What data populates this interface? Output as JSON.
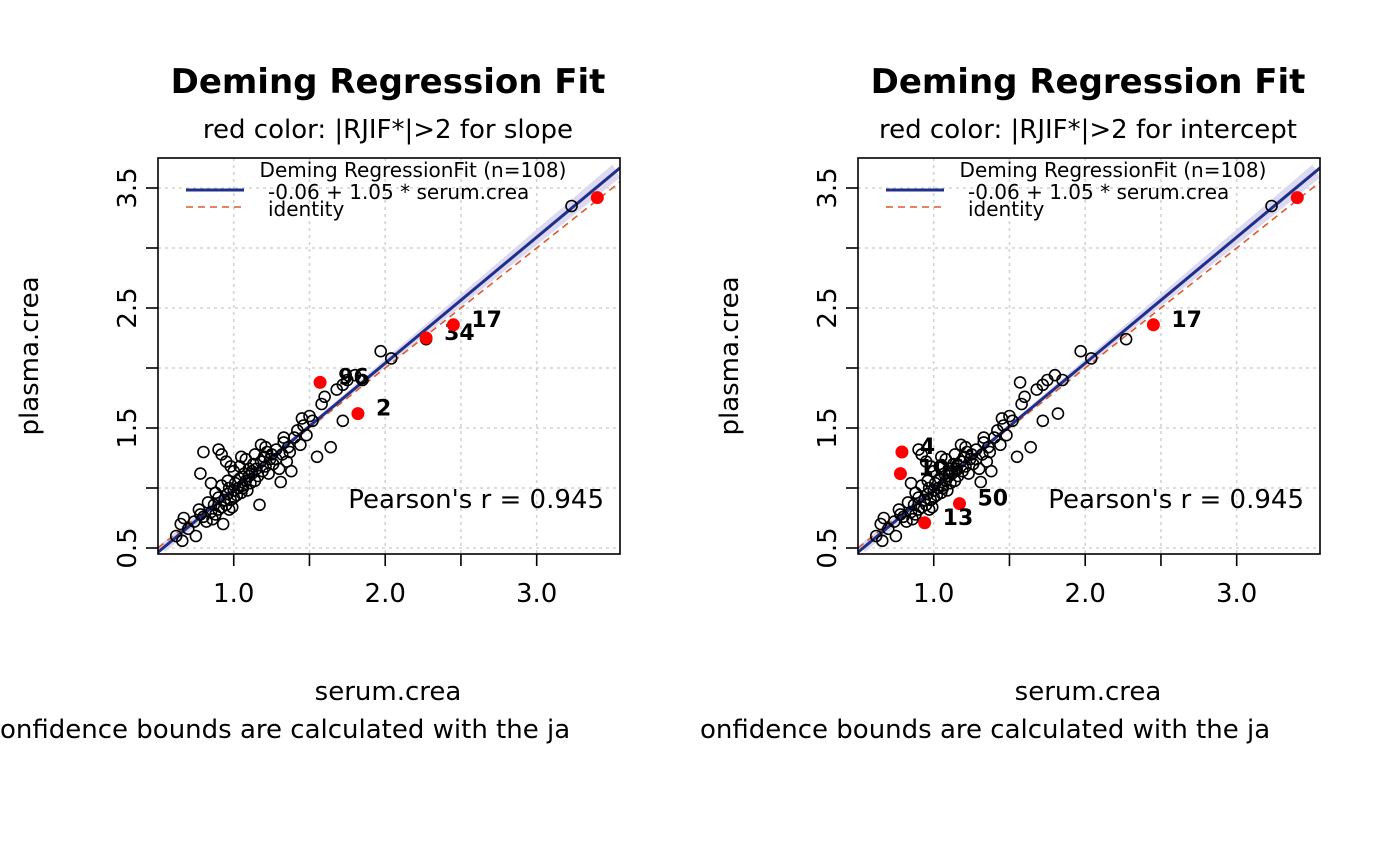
{
  "colors": {
    "fit_line": "#1f2f8a",
    "identity_line": "#e05a2a",
    "ci_band": "#dcd9f0",
    "highlight": "#ff0000",
    "point": "#000000",
    "grid": "#d3d3d3"
  },
  "chart_data": [
    {
      "type": "scatter",
      "title": "Deming Regression Fit",
      "subtitle": "red color: |RJIF*|>2 for slope",
      "xlabel": "serum.crea",
      "ylabel": "plasma.crea",
      "caption": "onfidence bounds are calculated with the ja",
      "xlim": [
        0.5,
        3.55
      ],
      "ylim": [
        0.45,
        3.75
      ],
      "xticks": [
        1.0,
        1.5,
        2.0,
        2.5,
        3.0
      ],
      "xtick_labels": [
        "1.0",
        "",
        "2.0",
        "",
        "3.0"
      ],
      "yticks": [
        0.5,
        1.0,
        1.5,
        2.0,
        2.5,
        3.0,
        3.5
      ],
      "ytick_labels": [
        "0.5",
        "",
        "1.5",
        "",
        "2.5",
        "",
        "3.5"
      ],
      "grid": true,
      "legend": {
        "position": "top",
        "title": "Deming RegressionFit (n=108)",
        "entries": [
          {
            "label": "-0.06 + 1.05 * serum.crea",
            "style": "solid"
          },
          {
            "label": "identity",
            "style": "dashed"
          }
        ]
      },
      "fit": {
        "intercept": -0.06,
        "slope": 1.05
      },
      "annotation": "Pearson's r = 0.945",
      "points": [
        [
          0.62,
          0.6
        ],
        [
          0.66,
          0.56
        ],
        [
          0.67,
          0.75
        ],
        [
          0.65,
          0.7
        ],
        [
          0.75,
          0.6
        ],
        [
          0.77,
          0.82
        ],
        [
          0.8,
          0.76
        ],
        [
          0.82,
          0.72
        ],
        [
          0.83,
          0.88
        ],
        [
          0.85,
          0.8
        ],
        [
          0.87,
          0.86
        ],
        [
          0.88,
          0.78
        ],
        [
          0.9,
          0.82
        ],
        [
          0.9,
          0.92
        ],
        [
          0.92,
          0.84
        ],
        [
          0.93,
          0.7
        ],
        [
          0.94,
          0.9
        ],
        [
          0.95,
          0.86
        ],
        [
          0.96,
          0.95
        ],
        [
          0.97,
          0.82
        ],
        [
          0.98,
          0.9
        ],
        [
          0.99,
          0.84
        ],
        [
          1.0,
          0.98
        ],
        [
          1.0,
          0.92
        ],
        [
          1.01,
          1.04
        ],
        [
          1.02,
          0.94
        ],
        [
          1.03,
          1.0
        ],
        [
          1.04,
          1.08
        ],
        [
          1.05,
          0.96
        ],
        [
          1.06,
          1.02
        ],
        [
          1.07,
          1.12
        ],
        [
          1.08,
          1.06
        ],
        [
          1.09,
          0.98
        ],
        [
          1.1,
          1.1
        ],
        [
          1.11,
          1.04
        ],
        [
          1.12,
          1.14
        ],
        [
          1.13,
          1.2
        ],
        [
          1.14,
          1.06
        ],
        [
          1.15,
          1.16
        ],
        [
          1.16,
          1.1
        ],
        [
          1.17,
          0.86
        ],
        [
          1.18,
          1.22
        ],
        [
          1.19,
          1.14
        ],
        [
          1.2,
          1.26
        ],
        [
          1.21,
          1.18
        ],
        [
          1.22,
          1.3
        ],
        [
          1.23,
          1.12
        ],
        [
          1.24,
          1.24
        ],
        [
          1.26,
          1.2
        ],
        [
          1.28,
          1.32
        ],
        [
          1.3,
          1.16
        ],
        [
          1.31,
          1.05
        ],
        [
          1.32,
          1.28
        ],
        [
          1.33,
          1.38
        ],
        [
          1.35,
          1.22
        ],
        [
          1.36,
          1.34
        ],
        [
          1.38,
          1.14
        ],
        [
          1.4,
          1.42
        ],
        [
          1.42,
          1.48
        ],
        [
          1.44,
          1.36
        ],
        [
          1.46,
          1.52
        ],
        [
          1.48,
          1.44
        ],
        [
          1.5,
          1.6
        ],
        [
          1.52,
          1.56
        ],
        [
          1.55,
          1.26
        ],
        [
          1.58,
          1.7
        ],
        [
          1.6,
          1.76
        ],
        [
          1.64,
          1.34
        ],
        [
          1.68,
          1.82
        ],
        [
          1.72,
          1.86
        ],
        [
          1.75,
          1.9
        ],
        [
          1.8,
          1.94
        ],
        [
          1.72,
          1.56
        ],
        [
          1.85,
          1.9
        ],
        [
          1.97,
          2.14
        ],
        [
          2.04,
          2.08
        ],
        [
          2.27,
          2.24
        ],
        [
          0.78,
          1.12
        ],
        [
          0.8,
          1.3
        ],
        [
          0.85,
          1.04
        ],
        [
          0.9,
          1.32
        ],
        [
          0.92,
          1.28
        ],
        [
          0.95,
          1.22
        ],
        [
          0.98,
          1.18
        ],
        [
          1.05,
          1.26
        ],
        [
          1.1,
          1.16
        ],
        [
          1.14,
          1.28
        ],
        [
          1.18,
          1.36
        ],
        [
          1.21,
          1.34
        ],
        [
          1.25,
          1.28
        ],
        [
          1.28,
          1.24
        ],
        [
          1.33,
          1.42
        ],
        [
          1.37,
          1.3
        ],
        [
          1.45,
          1.58
        ],
        [
          0.7,
          0.66
        ],
        [
          0.74,
          0.72
        ],
        [
          0.78,
          0.78
        ],
        [
          0.86,
          0.74
        ],
        [
          0.88,
          0.96
        ],
        [
          0.92,
          1.02
        ],
        [
          0.96,
          1.06
        ],
        [
          1.0,
          1.14
        ],
        [
          1.04,
          1.18
        ],
        [
          1.08,
          1.24
        ],
        [
          3.23,
          3.35
        ],
        [
          0.97,
          1.0
        ],
        [
          1.06,
          1.0
        ],
        [
          1.12,
          1.12
        ]
      ],
      "highlighted": [
        {
          "label": "96",
          "x": 1.57,
          "y": 1.88
        },
        {
          "label": "2",
          "x": 1.82,
          "y": 1.62
        },
        {
          "label": "34",
          "x": 2.27,
          "y": 2.25
        },
        {
          "label": "17",
          "x": 2.45,
          "y": 2.36
        },
        {
          "label": "",
          "x": 3.4,
          "y": 3.42
        }
      ]
    },
    {
      "type": "scatter",
      "title": "Deming Regression Fit",
      "subtitle": "red color: |RJIF*|>2 for intercept",
      "xlabel": "serum.crea",
      "ylabel": "plasma.crea",
      "caption": "onfidence bounds are calculated with the ja",
      "xlim": [
        0.5,
        3.55
      ],
      "ylim": [
        0.45,
        3.75
      ],
      "xticks": [
        1.0,
        1.5,
        2.0,
        2.5,
        3.0
      ],
      "xtick_labels": [
        "1.0",
        "",
        "2.0",
        "",
        "3.0"
      ],
      "yticks": [
        0.5,
        1.0,
        1.5,
        2.0,
        2.5,
        3.0,
        3.5
      ],
      "ytick_labels": [
        "0.5",
        "",
        "1.5",
        "",
        "2.5",
        "",
        "3.5"
      ],
      "grid": true,
      "legend": {
        "position": "top",
        "title": "Deming RegressionFit (n=108)",
        "entries": [
          {
            "label": "-0.06 + 1.05 * serum.crea",
            "style": "solid"
          },
          {
            "label": "identity",
            "style": "dashed"
          }
        ]
      },
      "fit": {
        "intercept": -0.06,
        "slope": 1.05
      },
      "annotation": "Pearson's r = 0.945",
      "points": [
        [
          0.62,
          0.6
        ],
        [
          0.66,
          0.56
        ],
        [
          0.67,
          0.75
        ],
        [
          0.65,
          0.7
        ],
        [
          0.75,
          0.6
        ],
        [
          0.77,
          0.82
        ],
        [
          0.8,
          0.76
        ],
        [
          0.82,
          0.72
        ],
        [
          0.83,
          0.88
        ],
        [
          0.85,
          0.8
        ],
        [
          0.87,
          0.86
        ],
        [
          0.88,
          0.78
        ],
        [
          0.9,
          0.82
        ],
        [
          0.9,
          0.92
        ],
        [
          0.92,
          0.84
        ],
        [
          0.94,
          0.9
        ],
        [
          0.95,
          0.86
        ],
        [
          0.96,
          0.95
        ],
        [
          0.97,
          0.82
        ],
        [
          0.98,
          0.9
        ],
        [
          0.99,
          0.84
        ],
        [
          1.0,
          0.98
        ],
        [
          1.0,
          0.92
        ],
        [
          1.01,
          1.04
        ],
        [
          1.02,
          0.94
        ],
        [
          1.03,
          1.0
        ],
        [
          1.04,
          1.08
        ],
        [
          1.05,
          0.96
        ],
        [
          1.06,
          1.02
        ],
        [
          1.07,
          1.12
        ],
        [
          1.08,
          1.06
        ],
        [
          1.09,
          0.98
        ],
        [
          1.1,
          1.1
        ],
        [
          1.11,
          1.04
        ],
        [
          1.12,
          1.14
        ],
        [
          1.13,
          1.2
        ],
        [
          1.14,
          1.06
        ],
        [
          1.15,
          1.16
        ],
        [
          1.16,
          1.1
        ],
        [
          1.18,
          1.22
        ],
        [
          1.19,
          1.14
        ],
        [
          1.2,
          1.26
        ],
        [
          1.21,
          1.18
        ],
        [
          1.22,
          1.3
        ],
        [
          1.23,
          1.12
        ],
        [
          1.24,
          1.24
        ],
        [
          1.26,
          1.2
        ],
        [
          1.28,
          1.32
        ],
        [
          1.3,
          1.16
        ],
        [
          1.31,
          1.05
        ],
        [
          1.32,
          1.28
        ],
        [
          1.33,
          1.38
        ],
        [
          1.35,
          1.22
        ],
        [
          1.36,
          1.34
        ],
        [
          1.38,
          1.14
        ],
        [
          1.4,
          1.42
        ],
        [
          1.42,
          1.48
        ],
        [
          1.44,
          1.36
        ],
        [
          1.46,
          1.52
        ],
        [
          1.48,
          1.44
        ],
        [
          1.5,
          1.6
        ],
        [
          1.52,
          1.56
        ],
        [
          1.55,
          1.26
        ],
        [
          1.58,
          1.7
        ],
        [
          1.6,
          1.76
        ],
        [
          1.64,
          1.34
        ],
        [
          1.68,
          1.82
        ],
        [
          1.72,
          1.86
        ],
        [
          1.75,
          1.9
        ],
        [
          1.8,
          1.94
        ],
        [
          1.72,
          1.56
        ],
        [
          1.85,
          1.9
        ],
        [
          1.82,
          1.62
        ],
        [
          1.57,
          1.88
        ],
        [
          1.97,
          2.14
        ],
        [
          2.04,
          2.08
        ],
        [
          2.27,
          2.24
        ],
        [
          0.85,
          1.04
        ],
        [
          0.9,
          1.32
        ],
        [
          0.92,
          1.28
        ],
        [
          0.95,
          1.22
        ],
        [
          0.98,
          1.18
        ],
        [
          1.05,
          1.26
        ],
        [
          1.1,
          1.16
        ],
        [
          1.14,
          1.28
        ],
        [
          1.18,
          1.36
        ],
        [
          1.21,
          1.34
        ],
        [
          1.25,
          1.28
        ],
        [
          1.28,
          1.24
        ],
        [
          1.33,
          1.42
        ],
        [
          1.37,
          1.3
        ],
        [
          1.45,
          1.58
        ],
        [
          0.7,
          0.66
        ],
        [
          0.74,
          0.72
        ],
        [
          0.78,
          0.78
        ],
        [
          0.86,
          0.74
        ],
        [
          0.88,
          0.96
        ],
        [
          0.92,
          1.02
        ],
        [
          0.96,
          1.06
        ],
        [
          1.0,
          1.14
        ],
        [
          1.04,
          1.18
        ],
        [
          1.08,
          1.24
        ],
        [
          3.23,
          3.35
        ],
        [
          0.97,
          1.0
        ],
        [
          1.06,
          1.0
        ],
        [
          1.12,
          1.12
        ]
      ],
      "highlighted": [
        {
          "label": "4",
          "x": 0.79,
          "y": 1.3
        },
        {
          "label": "106",
          "x": 0.78,
          "y": 1.12
        },
        {
          "label": "50",
          "x": 1.17,
          "y": 0.87
        },
        {
          "label": "13",
          "x": 0.94,
          "y": 0.71
        },
        {
          "label": "17",
          "x": 2.45,
          "y": 2.36
        },
        {
          "label": "",
          "x": 3.4,
          "y": 3.42
        }
      ]
    }
  ]
}
